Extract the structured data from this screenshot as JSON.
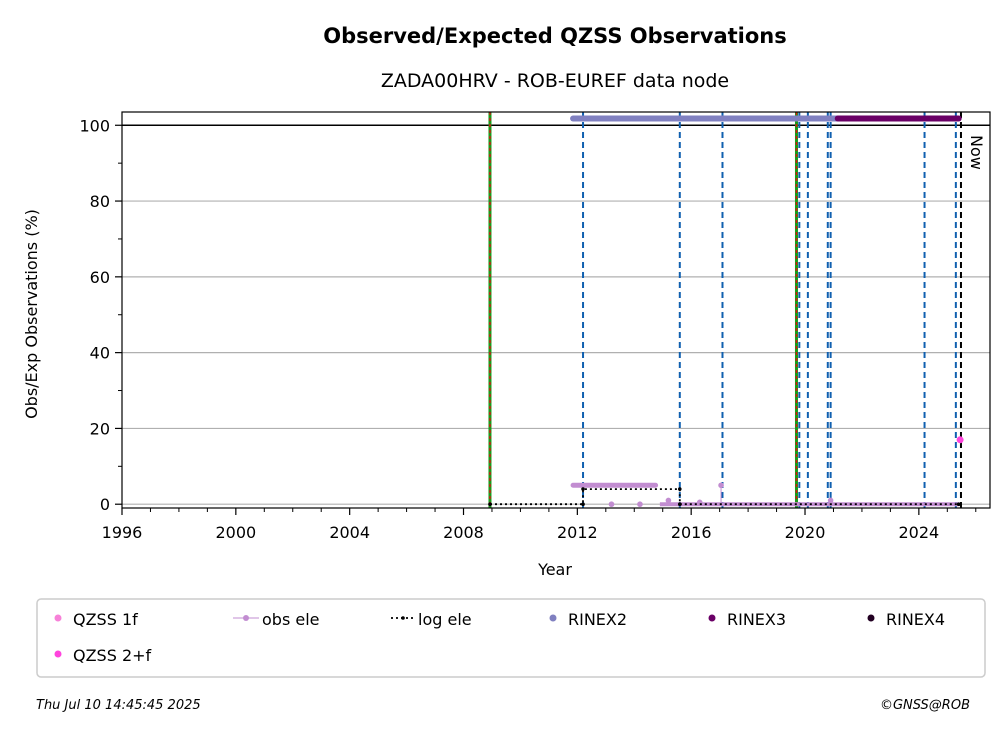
{
  "chart_data": {
    "type": "scatter",
    "title": "Observed/Expected QZSS Observations",
    "subtitle": "ZADA00HRV - ROB-EUREF data node",
    "xlabel": "Year",
    "ylabel": "Obs/Exp Observations (%)",
    "xlim": [
      1996,
      2026.5
    ],
    "ylim": [
      -1,
      103.5
    ],
    "xticks": [
      "1996",
      "2000",
      "2004",
      "2008",
      "2012",
      "2016",
      "2020",
      "2024"
    ],
    "xtick_values": [
      1996,
      2000,
      2004,
      2008,
      2012,
      2016,
      2020,
      2024
    ],
    "yticks": [
      "0",
      "20",
      "40",
      "60",
      "80",
      "100"
    ],
    "ytick_values": [
      0,
      20,
      40,
      60,
      80,
      100
    ],
    "grid": "horizontal",
    "reference_line_y": 100,
    "now_label": "Now",
    "now_year": 2025.53,
    "vertical_events": [
      {
        "x": 2008.93,
        "kind": "red-green"
      },
      {
        "x": 2012.2,
        "kind": "blue-dashed"
      },
      {
        "x": 2015.6,
        "kind": "blue-dashed"
      },
      {
        "x": 2017.1,
        "kind": "blue-dashed"
      },
      {
        "x": 2019.7,
        "kind": "red-green"
      },
      {
        "x": 2019.8,
        "kind": "blue-dashed"
      },
      {
        "x": 2020.1,
        "kind": "blue-dashed"
      },
      {
        "x": 2020.8,
        "kind": "blue-dashed"
      },
      {
        "x": 2020.9,
        "kind": "blue-dashed"
      },
      {
        "x": 2024.2,
        "kind": "blue-dashed"
      },
      {
        "x": 2025.3,
        "kind": "blue-dashed"
      },
      {
        "x": 2025.48,
        "kind": "black-dashed"
      }
    ],
    "series": [
      {
        "name": "QZSS 1f",
        "color": "#f781d8",
        "type": "points",
        "points": []
      },
      {
        "name": "QZSS 2+f",
        "color": "#ff44dd",
        "type": "points",
        "points": [
          [
            2025.45,
            17
          ]
        ]
      },
      {
        "name": "obs ele",
        "color": "#c28dd1",
        "type": "stems",
        "segments": [
          [
            2011.85,
            2014.75,
            5
          ]
        ],
        "points": [
          [
            2013.2,
            0
          ],
          [
            2014.2,
            0
          ],
          [
            2015.2,
            1
          ],
          [
            2016.3,
            0.5
          ],
          [
            2017.05,
            5
          ],
          [
            2020.9,
            1
          ]
        ],
        "baseline": [
          2014.9,
          2025.4,
          0
        ]
      },
      {
        "name": "log ele",
        "color": "#000000",
        "type": "steps",
        "points": [
          [
            2008.93,
            0
          ],
          [
            2012.2,
            0
          ],
          [
            2012.2,
            4
          ],
          [
            2015.6,
            4
          ],
          [
            2015.6,
            0
          ],
          [
            2025.4,
            0
          ]
        ]
      },
      {
        "name": "RINEX2",
        "color": "#8080c0",
        "type": "band",
        "ranges": [
          [
            2011.85,
            2021.35
          ]
        ],
        "y": 101.8
      },
      {
        "name": "RINEX3",
        "color": "#6a0066",
        "type": "band",
        "ranges": [
          [
            2021.15,
            2025.4
          ]
        ],
        "y": 101.8
      },
      {
        "name": "RINEX4",
        "color": "#220022",
        "type": "band",
        "ranges": [],
        "y": 101.8
      }
    ]
  },
  "legend": {
    "items": [
      {
        "label": "QZSS 1f",
        "color": "#f781d8",
        "marker": "dot"
      },
      {
        "label": "obs ele",
        "color": "#c28dd1",
        "marker": "line-dot"
      },
      {
        "label": "log ele",
        "color": "#000000",
        "marker": "dotted-line"
      },
      {
        "label": "RINEX2",
        "color": "#8080c0",
        "marker": "dot"
      },
      {
        "label": "RINEX3",
        "color": "#6a0066",
        "marker": "dot"
      },
      {
        "label": "RINEX4",
        "color": "#220022",
        "marker": "dot"
      },
      {
        "label": "QZSS 2+f",
        "color": "#ff44dd",
        "marker": "dot"
      }
    ]
  },
  "footer": {
    "timestamp": "Thu Jul 10 14:45:45 2025",
    "credit": "©GNSS@ROB"
  }
}
